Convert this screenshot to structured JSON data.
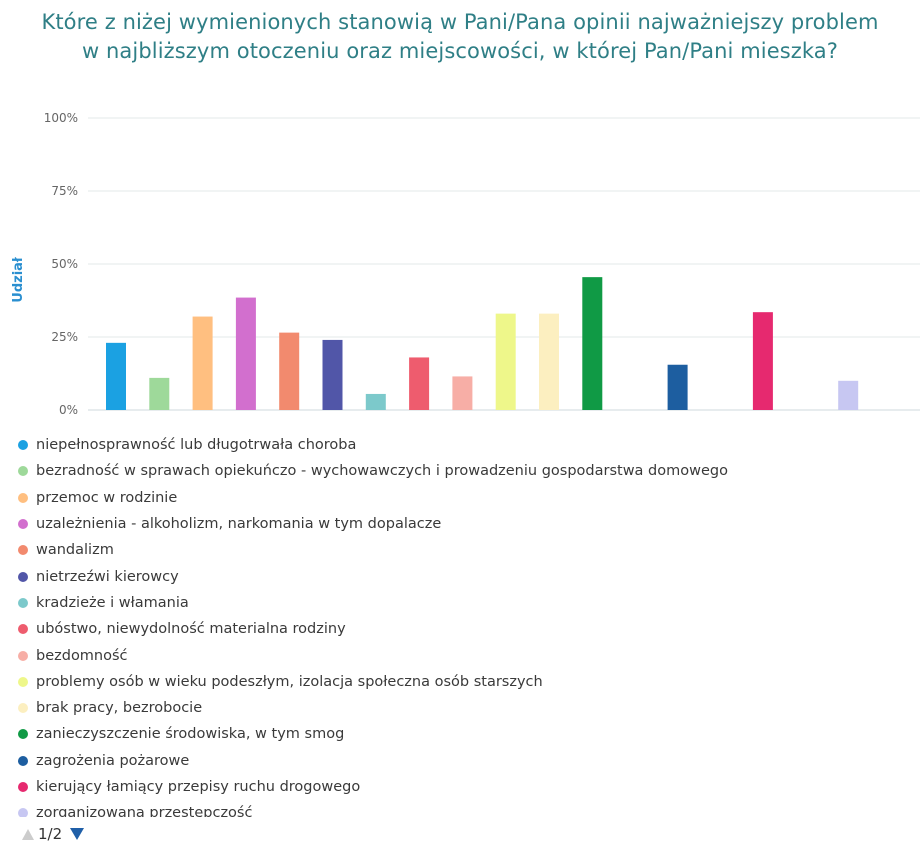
{
  "title_line1": "Które z niżej wymienionych stanowią w Pani/Pana opinii najważniejszy problem",
  "title_line2": "w najbliższym otoczeniu oraz miejscowości, w której Pan/Pani mieszka?",
  "chart_data": {
    "type": "bar",
    "ylabel": "Udział",
    "ylim": [
      0,
      100
    ],
    "yticks": [
      "0%",
      "25%",
      "50%",
      "75%",
      "100%"
    ],
    "grid": true,
    "legend_placement": "bottom",
    "categories": [
      "niepełnosprawność lub długotrwała choroba",
      "bezradność w sprawach opiekuńczo - wychowawczych i prowadzeniu gospodarstwa domowego",
      "przemoc w rodzinie",
      "uzależnienia - alkoholizm, narkomania w tym dopalacze",
      "wandalizm",
      "nietrzeźwi kierowcy",
      "kradzieże i włamania",
      "ubóstwo, niewydolność materialna rodziny",
      "bezdomność",
      "problemy osób w wieku podeszłym, izolacja społeczna osób starszych",
      "brak pracy, bezrobocie",
      "zanieczyszczenie środowiska, w tym smog",
      "zagrożenia pożarowe",
      "kierujący łamiący przepisy ruchu drogowego",
      "zorganizowana przestępczość"
    ],
    "values": [
      23,
      11,
      32,
      38.5,
      26.5,
      24,
      5.5,
      18,
      11.5,
      33,
      33,
      45.5,
      15.5,
      33.5,
      10
    ],
    "colors": [
      "#1ba1e2",
      "#9ed99a",
      "#ffbf80",
      "#d26fce",
      "#f28a6e",
      "#5156a8",
      "#7cc9cb",
      "#ee5c6e",
      "#f7aea6",
      "#eef78a",
      "#fcefc0",
      "#109a45",
      "#1d5ea0",
      "#e6296f",
      "#c7c7f2"
    ],
    "legend_visible_count": 15,
    "legend_page": "1/2"
  }
}
